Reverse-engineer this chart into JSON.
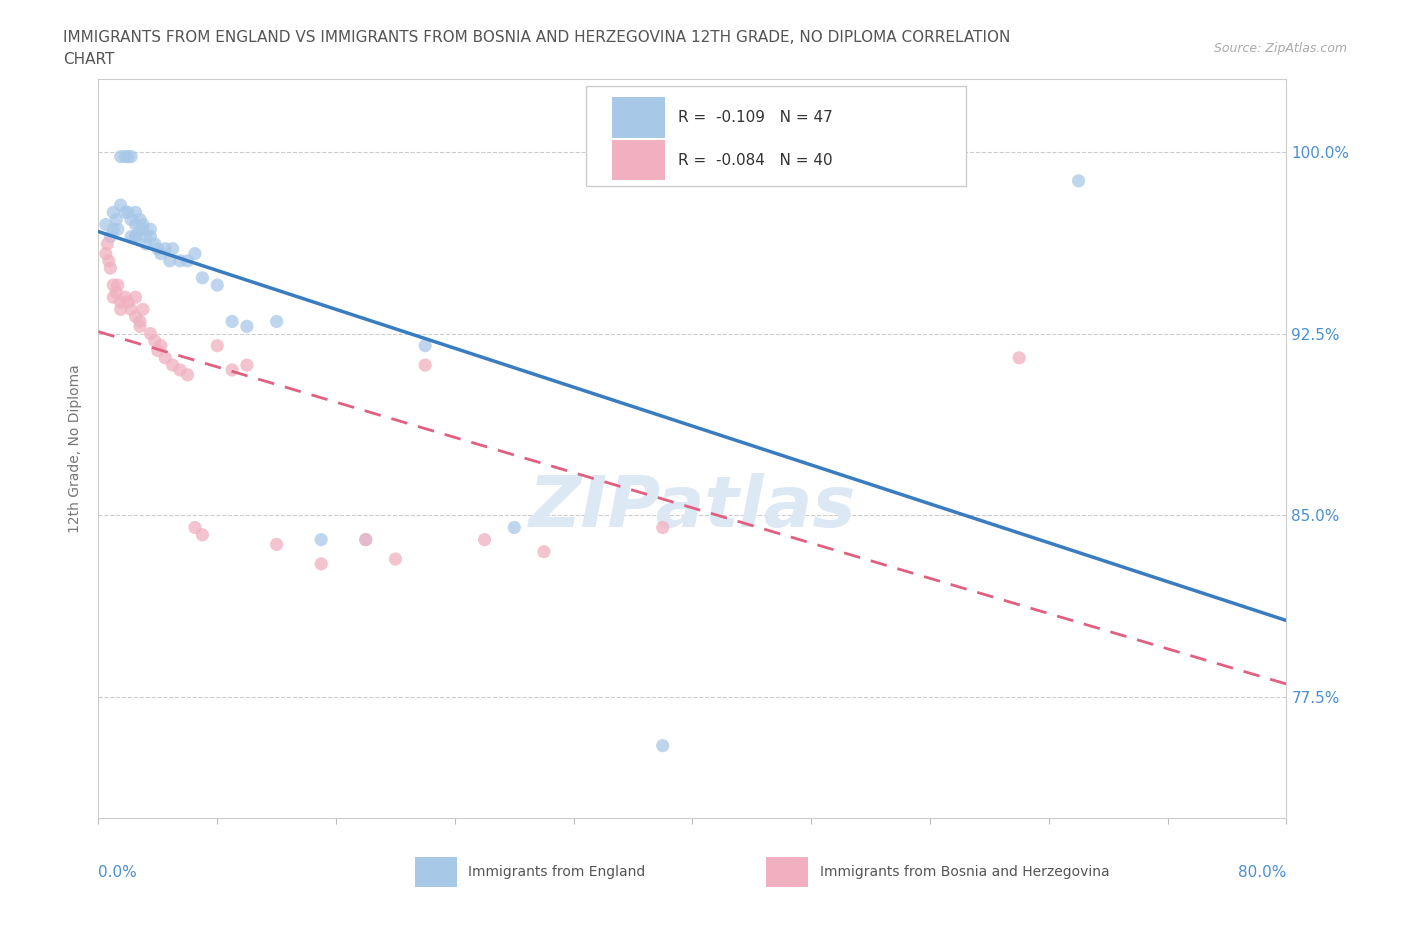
{
  "title_line1": "IMMIGRANTS FROM ENGLAND VS IMMIGRANTS FROM BOSNIA AND HERZEGOVINA 12TH GRADE, NO DIPLOMA CORRELATION",
  "title_line2": "CHART",
  "source": "Source: ZipAtlas.com",
  "ylabel": "12th Grade, No Diploma",
  "ytick_labels": [
    "77.5%",
    "85.0%",
    "92.5%",
    "100.0%"
  ],
  "ytick_values": [
    0.775,
    0.85,
    0.925,
    1.0
  ],
  "xmin": 0.0,
  "xmax": 0.8,
  "ymin": 0.725,
  "ymax": 1.03,
  "legend_england_R": "-0.109",
  "legend_england_N": "47",
  "legend_bosnia_R": "-0.084",
  "legend_bosnia_N": "40",
  "color_england": "#a8c8e8",
  "color_bosnia": "#f0b0c0",
  "color_england_line": "#3a7cc0",
  "color_bosnia_line": "#e06080",
  "watermark": "ZIPatlas",
  "england_x": [
    0.005,
    0.008,
    0.01,
    0.01,
    0.012,
    0.013,
    0.015,
    0.015,
    0.018,
    0.018,
    0.02,
    0.02,
    0.022,
    0.022,
    0.022,
    0.025,
    0.025,
    0.025,
    0.025,
    0.028,
    0.028,
    0.03,
    0.03,
    0.032,
    0.032,
    0.035,
    0.035,
    0.038,
    0.04,
    0.042,
    0.045,
    0.048,
    0.05,
    0.055,
    0.06,
    0.065,
    0.07,
    0.08,
    0.09,
    0.1,
    0.12,
    0.15,
    0.18,
    0.22,
    0.28,
    0.38,
    0.66
  ],
  "england_y": [
    0.97,
    0.965,
    0.975,
    0.968,
    0.972,
    0.968,
    0.978,
    0.998,
    0.998,
    0.975,
    0.998,
    0.975,
    0.965,
    0.972,
    0.998,
    0.965,
    0.97,
    0.975,
    0.965,
    0.968,
    0.972,
    0.97,
    0.968,
    0.965,
    0.962,
    0.965,
    0.968,
    0.962,
    0.96,
    0.958,
    0.96,
    0.955,
    0.96,
    0.955,
    0.955,
    0.958,
    0.948,
    0.945,
    0.93,
    0.928,
    0.93,
    0.84,
    0.84,
    0.92,
    0.845,
    0.755,
    0.988
  ],
  "bosnia_x": [
    0.005,
    0.006,
    0.007,
    0.008,
    0.01,
    0.01,
    0.012,
    0.013,
    0.015,
    0.015,
    0.018,
    0.02,
    0.022,
    0.025,
    0.025,
    0.028,
    0.028,
    0.03,
    0.035,
    0.038,
    0.04,
    0.042,
    0.045,
    0.05,
    0.055,
    0.06,
    0.065,
    0.07,
    0.08,
    0.09,
    0.1,
    0.12,
    0.15,
    0.18,
    0.2,
    0.22,
    0.26,
    0.3,
    0.38,
    0.62
  ],
  "bosnia_y": [
    0.958,
    0.962,
    0.955,
    0.952,
    0.94,
    0.945,
    0.942,
    0.945,
    0.938,
    0.935,
    0.94,
    0.938,
    0.935,
    0.932,
    0.94,
    0.93,
    0.928,
    0.935,
    0.925,
    0.922,
    0.918,
    0.92,
    0.915,
    0.912,
    0.91,
    0.908,
    0.845,
    0.842,
    0.92,
    0.91,
    0.912,
    0.838,
    0.83,
    0.84,
    0.832,
    0.912,
    0.84,
    0.835,
    0.845,
    0.915
  ]
}
